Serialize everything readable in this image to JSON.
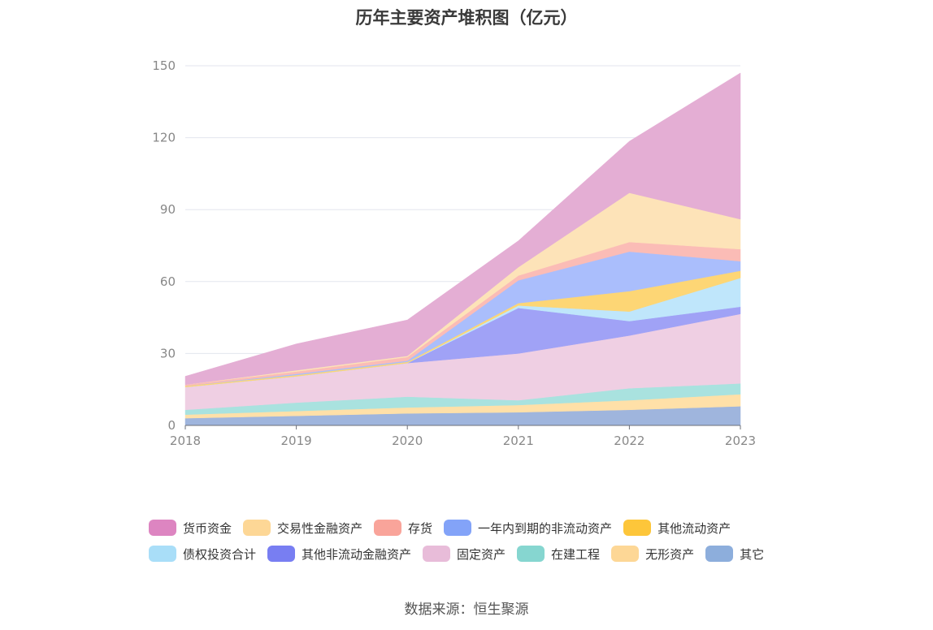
{
  "chart_data": {
    "type": "area",
    "stacked": true,
    "title": "历年主要资产堆积图（亿元）",
    "x": [
      "2018",
      "2019",
      "2020",
      "2021",
      "2022",
      "2023"
    ],
    "ylim": [
      0,
      150
    ],
    "yticks": [
      "0",
      "30",
      "60",
      "90",
      "120",
      "150"
    ],
    "grid": true,
    "legend_position": "bottom",
    "series": [
      {
        "name": "其它",
        "color": "#9fb5dd",
        "values": [
          3,
          4,
          5,
          5.5,
          6.5,
          8
        ]
      },
      {
        "name": "无形资产",
        "color": "#ffe0a8",
        "values": [
          1.5,
          2,
          2.5,
          3,
          4,
          5
        ]
      },
      {
        "name": "在建工程",
        "color": "#a9e2df",
        "values": [
          2,
          3.5,
          4.5,
          2,
          5,
          4.5
        ]
      },
      {
        "name": "固定资产",
        "color": "#efcfe3",
        "values": [
          9.5,
          11,
          14,
          19.5,
          22,
          29
        ]
      },
      {
        "name": "其他非流动金融资产",
        "color": "#a0a2f6",
        "values": [
          0,
          0,
          0,
          19,
          6,
          3
        ]
      },
      {
        "name": "债权投资合计",
        "color": "#bfe6fb",
        "values": [
          0,
          0,
          0,
          1,
          4,
          12
        ]
      },
      {
        "name": "其他流动资产",
        "color": "#fdd675",
        "values": [
          0.5,
          0.5,
          0.5,
          1,
          8.5,
          3
        ]
      },
      {
        "name": "一年内到期的非流动资产",
        "color": "#aabefc",
        "values": [
          0,
          0.5,
          0.5,
          9.5,
          16.5,
          4
        ]
      },
      {
        "name": "存货",
        "color": "#fbbcb6",
        "values": [
          0.5,
          1,
          1.5,
          2,
          4,
          5
        ]
      },
      {
        "name": "交易性金融资产",
        "color": "#fde3b8",
        "values": [
          0,
          0.5,
          0.5,
          3.5,
          20.5,
          12.5
        ]
      },
      {
        "name": "货币资金",
        "color": "#e4aed4",
        "values": [
          3.5,
          11,
          15,
          11,
          21.5,
          61
        ]
      }
    ]
  },
  "legend": {
    "row1": [
      {
        "label": "货币资金",
        "color": "#dd85c1"
      },
      {
        "label": "交易性金融资产",
        "color": "#fdd796"
      },
      {
        "label": "存货",
        "color": "#f9a49a"
      },
      {
        "label": "一年内到期的非流动资产",
        "color": "#83a3f8"
      },
      {
        "label": "其他流动资产",
        "color": "#fdc63a"
      }
    ],
    "row2": [
      {
        "label": "债权投资合计",
        "color": "#a9def8"
      },
      {
        "label": "其他非流动金融资产",
        "color": "#787ef2"
      },
      {
        "label": "固定资产",
        "color": "#e8bcd9"
      },
      {
        "label": "在建工程",
        "color": "#86d6d0"
      },
      {
        "label": "无形资产",
        "color": "#fdd796"
      },
      {
        "label": "其它",
        "color": "#8daedc"
      }
    ]
  },
  "source": "数据来源：恒生聚源"
}
